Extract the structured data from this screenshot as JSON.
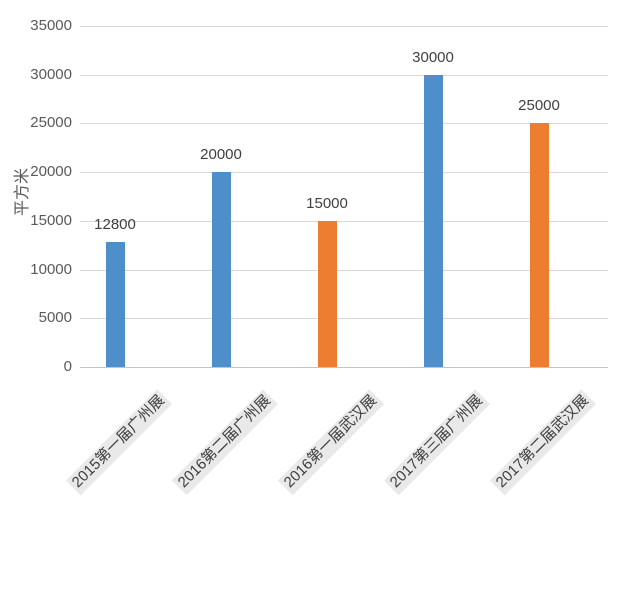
{
  "chart_data": {
    "type": "bar",
    "title": "",
    "ylabel": "平方米",
    "xlabel": "",
    "categories": [
      "2015第一届广州展",
      "2016第二届广州展",
      "2016第一届武汉展",
      "2017第三届广州展",
      "2017第二届武汉展"
    ],
    "values": [
      12800,
      20000,
      15000,
      30000,
      25000
    ],
    "data_labels": [
      "12800",
      "20000",
      "15000",
      "30000",
      "25000"
    ],
    "bar_colors": [
      "#4E8FCB",
      "#4E8FCB",
      "#ED7D31",
      "#4E8FCB",
      "#ED7D31"
    ],
    "yticks": [
      0,
      5000,
      10000,
      15000,
      20000,
      25000,
      30000,
      35000
    ],
    "ytick_labels": [
      "0",
      "5000",
      "10000",
      "15000",
      "20000",
      "25000",
      "30000",
      "35000"
    ],
    "ylim": [
      0,
      35000
    ],
    "grid": true,
    "legend": false,
    "colors": {
      "blue_series": "#4E8FCB",
      "orange_series": "#ED7D31",
      "gridline": "#D8D8D8",
      "axis_text": "#595959",
      "value_label_text": "#404040",
      "x_label_text": "#3D3D3D",
      "x_label_background": "#E9E9E9",
      "background": "#FFFFFF"
    }
  }
}
